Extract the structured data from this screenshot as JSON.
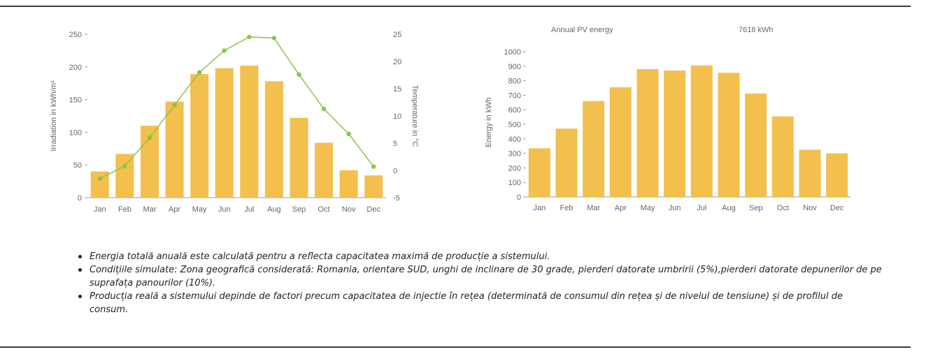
{
  "chart_data": [
    {
      "type": "bar",
      "categories": [
        "Jan",
        "Feb",
        "Mar",
        "Apr",
        "May",
        "Jun",
        "Jul",
        "Aug",
        "Sep",
        "Oct",
        "Nov",
        "Dec"
      ],
      "series": [
        {
          "values": [
            40,
            67,
            110,
            147,
            189,
            198,
            202,
            178,
            122,
            84,
            42,
            34
          ],
          "axis": "left",
          "type": "bar"
        },
        {
          "values": [
            -1.5,
            0.8,
            6,
            12,
            18,
            22,
            24.5,
            24.3,
            17.6,
            11.3,
            6.7,
            0.7
          ],
          "axis": "right",
          "type": "line"
        }
      ],
      "ylabel": "Irradiation in kWh/m²",
      "y2label": "Temperature in °C",
      "ylim": [
        0,
        250
      ],
      "y2lim": [
        -5,
        25
      ],
      "yticks": [
        "0",
        "50",
        "100",
        "150",
        "200",
        "250"
      ],
      "y2ticks": [
        "-5",
        "0",
        "5",
        "10",
        "15",
        "20",
        "25"
      ],
      "colors": {
        "bar": "#f3bf4d",
        "line": "#8bc34a"
      },
      "grid": false
    },
    {
      "type": "bar",
      "title": "Annual PV energy",
      "subtitle": "7618 kWh",
      "categories": [
        "Jan",
        "Feb",
        "Mar",
        "Apr",
        "May",
        "Jun",
        "Jul",
        "Aug",
        "Sep",
        "Oct",
        "Nov",
        "Dec"
      ],
      "values": [
        335,
        470,
        660,
        755,
        880,
        870,
        905,
        855,
        712,
        555,
        325,
        300
      ],
      "ylabel": "Energy in kWh",
      "ylim": [
        0,
        1000
      ],
      "yticks": [
        "0",
        "100",
        "200",
        "300",
        "400",
        "500",
        "600",
        "700",
        "800",
        "900",
        "1000"
      ],
      "colors": {
        "bar": "#f3bf4d"
      },
      "grid": false
    }
  ],
  "notes": [
    "Energia totală anuală este calculată pentru a reflecta capacitatea maximă de producție a sistemului.",
    "Condițiile simulate: Zona geografică considerată: Romania, orientare SUD, unghi de inclinare de 30 grade, pierderi datorate umbririi (5%),pierderi datorate depunerilor de pe suprafața panourilor (10%).",
    "Producția reală a sistemului depinde de factori precum capacitatea de injectie în rețea (determinată de consumul din rețea și de nivelul de tensiune) și de profilul de consum."
  ]
}
